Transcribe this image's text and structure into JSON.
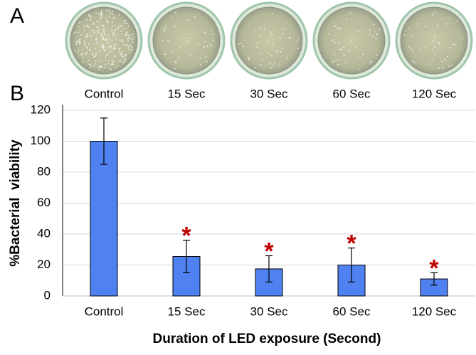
{
  "panel_a": {
    "label": "A",
    "dishes": [
      "Control",
      "15 Sec",
      "30 Sec",
      "60 Sec",
      "120 Sec"
    ]
  },
  "chart_data": {
    "type": "bar",
    "panel_label": "B",
    "categories": [
      "Control",
      "15 Sec",
      "30 Sec",
      "60 Sec",
      "120 Sec"
    ],
    "values": [
      100,
      25.5,
      17.5,
      20,
      11
    ],
    "errors": [
      15,
      10.5,
      8.5,
      11,
      4
    ],
    "significance": [
      null,
      "*",
      "*",
      "*",
      "*"
    ],
    "color": "#4f81f0",
    "significance_color": "#c00000",
    "ylim": [
      0,
      120
    ],
    "yticks": [
      0,
      20,
      40,
      60,
      80,
      100,
      120
    ],
    "grid": true,
    "xlabel": "Duration of LED exposure (Second)",
    "ylabel": "%Bacterial  viability"
  }
}
